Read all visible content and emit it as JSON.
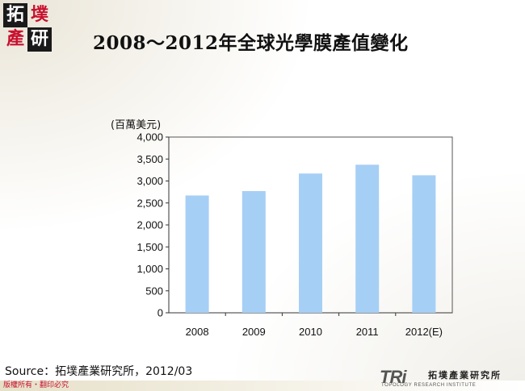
{
  "header": {
    "logo_chars": [
      "拓",
      "墣",
      "產",
      "研"
    ],
    "title": "2008～2012年全球光學膜產值變化"
  },
  "chart_data": {
    "type": "bar",
    "categories": [
      "2008",
      "2009",
      "2010",
      "2011",
      "2012(E)"
    ],
    "values": [
      2670,
      2770,
      3170,
      3370,
      3130
    ],
    "ylabel": "(百萬美元)",
    "ylim": [
      0,
      4000
    ],
    "yticks": [
      "0",
      "500",
      "1,000",
      "1,500",
      "2,000",
      "2,500",
      "3,000",
      "3,500",
      "4,000"
    ],
    "grid": false,
    "legend": "none",
    "bar_color": "#a6cff5"
  },
  "footer": {
    "source": "Source：拓墣產業研究所，2012/03",
    "copyright": "版權所有・翻印必究",
    "logo_mark": "TRi",
    "institute_name": "拓墣產業研究所",
    "institute_en": "TOPOLOGY RESEARCH INSTITUTE"
  },
  "colors": {
    "brand_red": "#c8102e",
    "bar": "#a6cff5"
  }
}
